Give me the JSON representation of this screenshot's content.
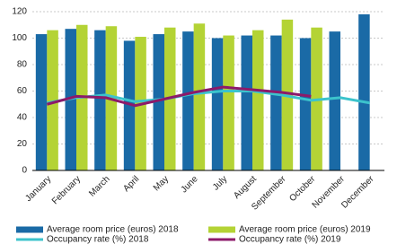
{
  "chart_data": {
    "type": "bar",
    "categories": [
      "January",
      "February",
      "March",
      "April",
      "May",
      "June",
      "July",
      "August",
      "September",
      "October",
      "November",
      "December"
    ],
    "series": [
      {
        "name": "Average room price (euros) 2018",
        "color": "#1a6aa6",
        "type": "bar",
        "values": [
          103,
          107,
          106,
          98,
          103,
          105,
          100,
          102,
          102,
          100,
          105,
          118
        ]
      },
      {
        "name": "Average room price (euros) 2019",
        "color": "#b4d335",
        "type": "bar",
        "values": [
          106,
          110,
          109,
          101,
          108,
          111,
          102,
          106,
          114,
          108,
          null,
          null
        ]
      },
      {
        "name": "Occupancy rate (%) 2018",
        "color": "#3cc3cc",
        "type": "line",
        "values": [
          51,
          55,
          57,
          52,
          54,
          58,
          60,
          60,
          57,
          53,
          55,
          51
        ]
      },
      {
        "name": "Occupancy rate (%) 2019",
        "color": "#8c1a6a",
        "type": "line",
        "values": [
          50,
          56,
          55,
          49,
          54,
          59,
          63,
          61,
          59,
          56,
          null,
          null
        ]
      }
    ],
    "ylim": [
      0,
      120
    ],
    "yticks": [
      0,
      20,
      40,
      60,
      80,
      100,
      120
    ],
    "grid": true
  }
}
